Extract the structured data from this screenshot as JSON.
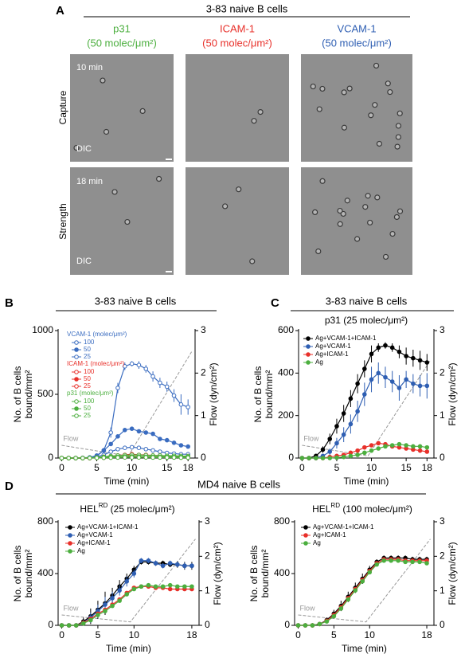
{
  "panel_a": {
    "label": "A",
    "header": "3-83 naive B cells",
    "columns": [
      {
        "name": "p31",
        "density": "(50 molec/μm²)"
      },
      {
        "name": "ICAM-1",
        "density": "(50 molec/μm²)"
      },
      {
        "name": "VCAM-1",
        "density": "(50 molec/μm²)"
      }
    ],
    "rows": [
      {
        "label": "Capture",
        "time": "10 min",
        "mode": "DIC"
      },
      {
        "label": "Strength",
        "time": "18 min",
        "mode": "DIC"
      }
    ]
  },
  "panel_b": {
    "label": "B",
    "header": "3-83 naive B cells"
  },
  "panel_c": {
    "label": "C",
    "header": "3-83 naive B cells"
  },
  "panel_d": {
    "label": "D",
    "header": "MD4 naive B cells"
  },
  "chart_data": [
    {
      "type": "line",
      "xlabel": "Time (min)",
      "ylabel": [
        "No. of B cells",
        "bound/mm²"
      ],
      "y2label": "Flow (dyn/cm²)",
      "x": [
        0,
        1,
        2,
        3,
        4,
        5,
        6,
        7,
        8,
        9,
        10,
        11,
        12,
        13,
        14,
        15,
        16,
        17,
        18
      ],
      "xlim": [
        -0.5,
        19
      ],
      "xticks": [
        0,
        5,
        10,
        15,
        18
      ],
      "ylim": [
        0,
        1000
      ],
      "yticks": [
        0,
        500,
        1000
      ],
      "y2lim": [
        0,
        3
      ],
      "y2ticks": [
        0,
        1,
        2,
        3
      ],
      "groups": [
        {
          "title": "VCAM-1 (molec/μm²)",
          "color": "#3a6cc0",
          "series": [
            {
              "name": "100",
              "marker": "open",
              "values": [
                0,
                0,
                0,
                2,
                5,
                15,
                60,
                200,
                550,
                720,
                740,
                730,
                700,
                640,
                590,
                560,
                490,
                420,
                400
              ],
              "errors": [
                0,
                0,
                0,
                0,
                5,
                10,
                20,
                40,
                40,
                30,
                20,
                30,
                30,
                40,
                40,
                40,
                50,
                80,
                60
              ]
            },
            {
              "name": "50",
              "marker": "filled",
              "values": [
                0,
                0,
                0,
                0,
                5,
                20,
                60,
                110,
                170,
                220,
                230,
                210,
                200,
                190,
                150,
                140,
                120,
                100,
                90
              ]
            },
            {
              "name": "25",
              "marker": "open",
              "values": [
                0,
                0,
                0,
                0,
                2,
                10,
                25,
                50,
                70,
                80,
                85,
                80,
                70,
                60,
                50,
                40,
                35,
                30,
                30
              ]
            }
          ]
        },
        {
          "title": "ICAM-1 (molec/μm²)",
          "color": "#e8302a",
          "series": [
            {
              "name": "100",
              "marker": "open",
              "values": [
                0,
                0,
                0,
                0,
                0,
                5,
                10,
                15,
                20,
                25,
                30,
                25,
                25,
                20,
                20,
                15,
                15,
                15,
                15
              ]
            },
            {
              "name": "50",
              "marker": "filled",
              "values": [
                0,
                0,
                0,
                0,
                0,
                2,
                5,
                8,
                10,
                12,
                15,
                12,
                12,
                10,
                10,
                10,
                8,
                8,
                8
              ]
            },
            {
              "name": "25",
              "marker": "open",
              "values": [
                0,
                0,
                0,
                0,
                0,
                1,
                2,
                4,
                5,
                6,
                8,
                6,
                6,
                5,
                5,
                5,
                5,
                4,
                4
              ]
            }
          ]
        },
        {
          "title": "p31 (molec/μm²)",
          "color": "#4caf3f",
          "series": [
            {
              "name": "100",
              "marker": "open",
              "values": [
                0,
                0,
                0,
                0,
                2,
                5,
                10,
                15,
                20,
                22,
                25,
                24,
                22,
                20,
                20,
                18,
                18,
                16,
                15
              ]
            },
            {
              "name": "50",
              "marker": "filled",
              "values": [
                0,
                0,
                0,
                0,
                1,
                3,
                5,
                8,
                10,
                12,
                12,
                12,
                10,
                10,
                10,
                10,
                9,
                8,
                8
              ]
            },
            {
              "name": "25",
              "marker": "open",
              "values": [
                0,
                0,
                0,
                0,
                0,
                1,
                2,
                3,
                4,
                5,
                5,
                5,
                5,
                4,
                4,
                4,
                4,
                3,
                3
              ]
            }
          ]
        }
      ],
      "flow": {
        "name": "Flow",
        "color": "#999999",
        "x": [
          0,
          9.5,
          18.5
        ],
        "values": [
          0.3,
          0.05,
          2.5
        ]
      }
    },
    {
      "type": "line",
      "title": "p31 (25 molec/μm²)",
      "xlabel": "Time (min)",
      "ylabel": [
        "No. of B cells",
        "bound/mm²"
      ],
      "y2label": "Flow (dyn/cm²)",
      "x": [
        0,
        1,
        2,
        3,
        4,
        5,
        6,
        7,
        8,
        9,
        10,
        11,
        12,
        13,
        14,
        15,
        16,
        17,
        18
      ],
      "xlim": [
        -0.5,
        19
      ],
      "xticks": [
        0,
        5,
        10,
        15,
        18
      ],
      "ylim": [
        0,
        600
      ],
      "yticks": [
        0,
        200,
        400,
        600
      ],
      "y2lim": [
        0,
        3
      ],
      "y2ticks": [
        0,
        1,
        2,
        3
      ],
      "series": [
        {
          "name": "Ag+VCAM-1+ICAM-1",
          "color": "#000000",
          "marker": "filled",
          "values": [
            0,
            0,
            10,
            40,
            90,
            150,
            210,
            280,
            350,
            420,
            490,
            520,
            530,
            520,
            500,
            480,
            470,
            460,
            450
          ],
          "errors": [
            0,
            0,
            5,
            15,
            25,
            35,
            40,
            40,
            45,
            40,
            40,
            20,
            15,
            20,
            30,
            40,
            40,
            45,
            40
          ]
        },
        {
          "name": "Ag+VCAM-1",
          "color": "#2f5fb3",
          "marker": "filled",
          "values": [
            0,
            0,
            0,
            10,
            30,
            70,
            110,
            160,
            220,
            300,
            370,
            400,
            380,
            360,
            330,
            370,
            350,
            340,
            340
          ],
          "errors": [
            0,
            0,
            0,
            5,
            15,
            25,
            35,
            45,
            50,
            55,
            60,
            50,
            50,
            50,
            60,
            40,
            45,
            50,
            60
          ]
        },
        {
          "name": "Ag+ICAM-1",
          "color": "#e8302a",
          "marker": "filled",
          "values": [
            0,
            0,
            0,
            0,
            5,
            10,
            15,
            25,
            35,
            50,
            60,
            70,
            65,
            55,
            50,
            45,
            40,
            35,
            30
          ]
        },
        {
          "name": "Ag",
          "color": "#4caf3f",
          "marker": "filled",
          "values": [
            0,
            0,
            0,
            0,
            0,
            2,
            5,
            10,
            15,
            25,
            35,
            45,
            55,
            60,
            65,
            60,
            55,
            55,
            50
          ]
        }
      ],
      "flow": {
        "name": "Flow",
        "color": "#999999",
        "x": [
          0,
          9.5,
          18.5
        ],
        "values": [
          0.3,
          0.05,
          2.3
        ]
      }
    },
    {
      "type": "line",
      "title": [
        "HEL",
        "RD",
        " (25 molec/μm²)"
      ],
      "xlabel": "Time (min)",
      "ylabel": [
        "No. of B cells",
        "bound/mm²"
      ],
      "y2label": "Flow (dyn/cm²)",
      "x": [
        0,
        1,
        2,
        3,
        4,
        5,
        6,
        7,
        8,
        9,
        10,
        11,
        12,
        13,
        14,
        15,
        16,
        17,
        18
      ],
      "xlim": [
        -0.5,
        19
      ],
      "xticks": [
        0,
        5,
        10,
        18
      ],
      "ylim": [
        0,
        800
      ],
      "yticks": [
        0,
        400,
        800
      ],
      "y2lim": [
        0,
        3
      ],
      "y2ticks": [
        0,
        1,
        2,
        3
      ],
      "series": [
        {
          "name": "Ag+VCAM-1+ICAM-1",
          "color": "#000000",
          "marker": "filled",
          "values": [
            0,
            0,
            0,
            30,
            70,
            120,
            170,
            230,
            300,
            360,
            430,
            490,
            490,
            480,
            480,
            470,
            470,
            460,
            460
          ],
          "errors": [
            0,
            0,
            0,
            30,
            60,
            70,
            90,
            60,
            50,
            40,
            30,
            20,
            20,
            20,
            20,
            20,
            25,
            30,
            30
          ]
        },
        {
          "name": "Ag+VCAM-1",
          "color": "#2f5fb3",
          "marker": "filled",
          "values": [
            0,
            0,
            0,
            20,
            60,
            110,
            160,
            210,
            270,
            340,
            400,
            500,
            500,
            480,
            460,
            480,
            470,
            460,
            460
          ],
          "errors": [
            0,
            0,
            0,
            20,
            40,
            50,
            60,
            50,
            40,
            40,
            30,
            20,
            20,
            20,
            20,
            20,
            20,
            25,
            20
          ]
        },
        {
          "name": "Ag+ICAM-1",
          "color": "#e8302a",
          "marker": "filled",
          "values": [
            0,
            0,
            0,
            20,
            50,
            90,
            120,
            160,
            200,
            250,
            290,
            300,
            300,
            290,
            290,
            280,
            280,
            280,
            280
          ]
        },
        {
          "name": "Ag",
          "color": "#4caf3f",
          "marker": "filled",
          "values": [
            0,
            0,
            0,
            15,
            40,
            80,
            110,
            150,
            190,
            240,
            280,
            300,
            310,
            300,
            300,
            310,
            300,
            300,
            300
          ]
        }
      ],
      "flow": {
        "name": "Flow",
        "color": "#999999",
        "x": [
          0,
          9.5,
          18.5
        ],
        "values": [
          0.3,
          0.1,
          2.5
        ]
      }
    },
    {
      "type": "line",
      "title": [
        "HEL",
        "RD",
        " (100 molec/μm²)"
      ],
      "xlabel": "Time (min)",
      "ylabel": [
        "No. of B cells",
        "bound/mm²"
      ],
      "y2label": "Flow (dyn/cm²)",
      "x": [
        0,
        1,
        2,
        3,
        4,
        5,
        6,
        7,
        8,
        9,
        10,
        11,
        12,
        13,
        14,
        15,
        16,
        17,
        18
      ],
      "xlim": [
        -0.5,
        19
      ],
      "xticks": [
        0,
        5,
        10,
        18
      ],
      "ylim": [
        0,
        800
      ],
      "yticks": [
        0,
        400,
        800
      ],
      "y2lim": [
        0,
        3
      ],
      "y2ticks": [
        0,
        1,
        2,
        3
      ],
      "series": [
        {
          "name": "Ag+VCAM-1+ICAM-1",
          "color": "#000000",
          "marker": "filled",
          "values": [
            0,
            0,
            0,
            10,
            40,
            90,
            150,
            220,
            290,
            360,
            430,
            490,
            520,
            520,
            520,
            520,
            510,
            510,
            510
          ],
          "errors": [
            0,
            0,
            0,
            10,
            20,
            30,
            40,
            40,
            40,
            40,
            30,
            20,
            20,
            20,
            20,
            20,
            20,
            20,
            20
          ]
        },
        {
          "name": "Ag+ICAM-1",
          "color": "#e8302a",
          "marker": "filled",
          "values": [
            0,
            0,
            0,
            10,
            35,
            80,
            140,
            210,
            280,
            350,
            420,
            480,
            510,
            510,
            510,
            500,
            500,
            500,
            500
          ]
        },
        {
          "name": "Ag",
          "color": "#4caf3f",
          "marker": "filled",
          "values": [
            0,
            0,
            0,
            10,
            30,
            70,
            130,
            200,
            270,
            340,
            410,
            470,
            500,
            500,
            500,
            490,
            490,
            490,
            480
          ]
        }
      ],
      "flow": {
        "name": "Flow",
        "color": "#999999",
        "x": [
          0,
          9.5,
          18.5
        ],
        "values": [
          0.3,
          0.1,
          2.5
        ]
      }
    }
  ]
}
